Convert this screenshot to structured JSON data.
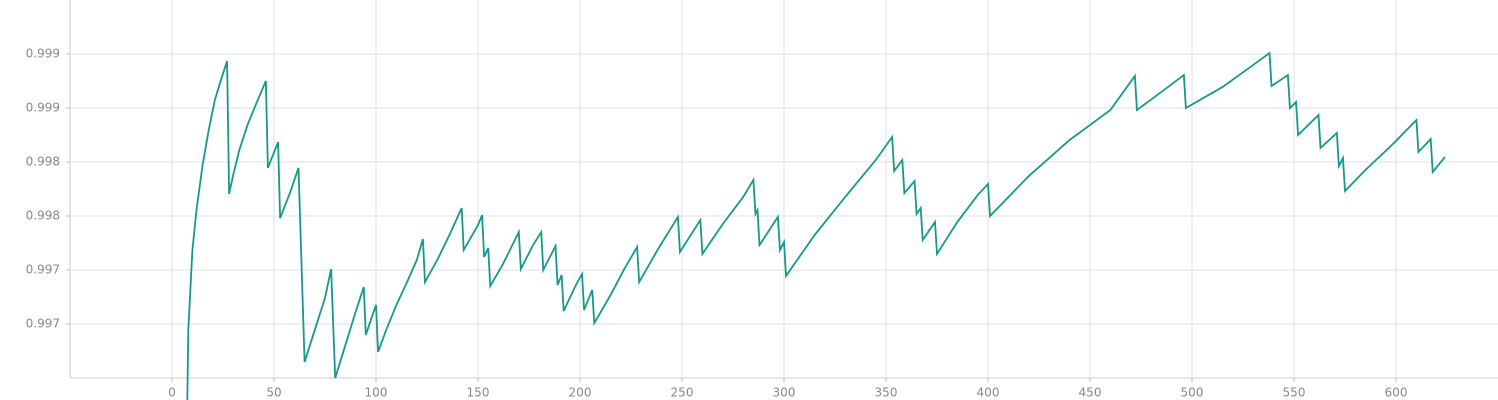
{
  "chart_data": {
    "type": "line",
    "x": [
      7.5,
      8,
      9,
      10,
      12,
      15,
      18,
      21,
      24,
      27,
      28,
      30,
      33,
      37,
      41,
      46,
      47,
      52,
      53,
      58,
      62,
      65,
      70,
      75,
      78,
      80,
      85,
      90,
      94,
      95,
      100,
      101,
      105,
      110,
      115,
      120,
      123,
      124,
      130,
      136,
      142,
      143,
      150,
      152,
      153,
      155,
      156,
      162,
      170,
      171,
      177,
      181,
      182,
      188,
      189,
      191,
      192,
      198,
      201,
      202,
      206,
      207,
      215,
      222,
      228,
      229,
      238,
      248,
      249,
      259,
      260,
      270,
      280,
      285,
      286,
      287,
      288,
      297,
      298,
      300,
      301,
      315,
      330,
      345,
      353,
      354,
      358,
      359,
      364,
      365,
      367,
      368,
      374,
      375,
      385,
      395,
      400,
      401,
      420,
      440,
      460,
      472,
      473,
      485,
      496,
      497,
      515,
      530,
      538,
      539,
      547,
      548,
      551,
      552,
      562,
      563,
      571,
      572,
      574,
      575,
      585,
      598,
      610,
      611,
      617,
      618,
      624
    ],
    "series": [
      {
        "color": "#16998a",
        "values": [
          0.996437,
          0.996956,
          0.997252,
          0.997548,
          0.997844,
          0.998178,
          0.998437,
          0.998659,
          0.998807,
          0.998948,
          0.997963,
          0.998104,
          0.998289,
          0.998474,
          0.998622,
          0.9988,
          0.998156,
          0.998348,
          0.997785,
          0.997978,
          0.998156,
          0.996719,
          0.996956,
          0.997193,
          0.997407,
          0.9966,
          0.996844,
          0.997089,
          0.997274,
          0.996919,
          0.997141,
          0.996793,
          0.996956,
          0.997141,
          0.997304,
          0.997474,
          0.99763,
          0.997311,
          0.997474,
          0.997659,
          0.997859,
          0.997548,
          0.997733,
          0.997807,
          0.997496,
          0.997563,
          0.997281,
          0.997437,
          0.997681,
          0.997407,
          0.997585,
          0.997681,
          0.9974,
          0.997578,
          0.997289,
          0.997363,
          0.997096,
          0.997289,
          0.99737,
          0.997104,
          0.997252,
          0.997007,
          0.997215,
          0.997415,
          0.99757,
          0.997311,
          0.997548,
          0.997793,
          0.997533,
          0.99777,
          0.997519,
          0.997741,
          0.997941,
          0.998067,
          0.997815,
          0.997844,
          0.997585,
          0.997793,
          0.997548,
          0.997607,
          0.997356,
          0.997659,
          0.997941,
          0.998215,
          0.998385,
          0.998133,
          0.998215,
          0.99797,
          0.998059,
          0.997815,
          0.997859,
          0.997622,
          0.997756,
          0.997519,
          0.997756,
          0.997956,
          0.998037,
          0.9978,
          0.998096,
          0.998363,
          0.998585,
          0.998837,
          0.998585,
          0.998719,
          0.998844,
          0.9986,
          0.998756,
          0.998919,
          0.999007,
          0.998763,
          0.998844,
          0.9986,
          0.998644,
          0.9984,
          0.998548,
          0.998304,
          0.998415,
          0.99817,
          0.99823,
          0.997985,
          0.998141,
          0.998326,
          0.998511,
          0.998274,
          0.99837,
          0.998126,
          0.998237
        ]
      }
    ],
    "xlim": [
      -50,
      650
    ],
    "xticks": [
      0,
      50,
      100,
      150,
      200,
      250,
      300,
      350,
      400,
      450,
      500,
      550,
      600
    ],
    "ylim": [
      0.9966,
      0.9994
    ],
    "yticks": [
      0.999,
      {
        "value": 0.9986,
        "label": "0.999"
      },
      {
        "value": 0.9982,
        "label": "0.998"
      },
      {
        "value": 0.9978,
        "label": "0.998"
      },
      {
        "value": 0.9974,
        "label": "0.997"
      },
      {
        "value": 0.997,
        "label": "0.997"
      }
    ],
    "grid": true
  }
}
